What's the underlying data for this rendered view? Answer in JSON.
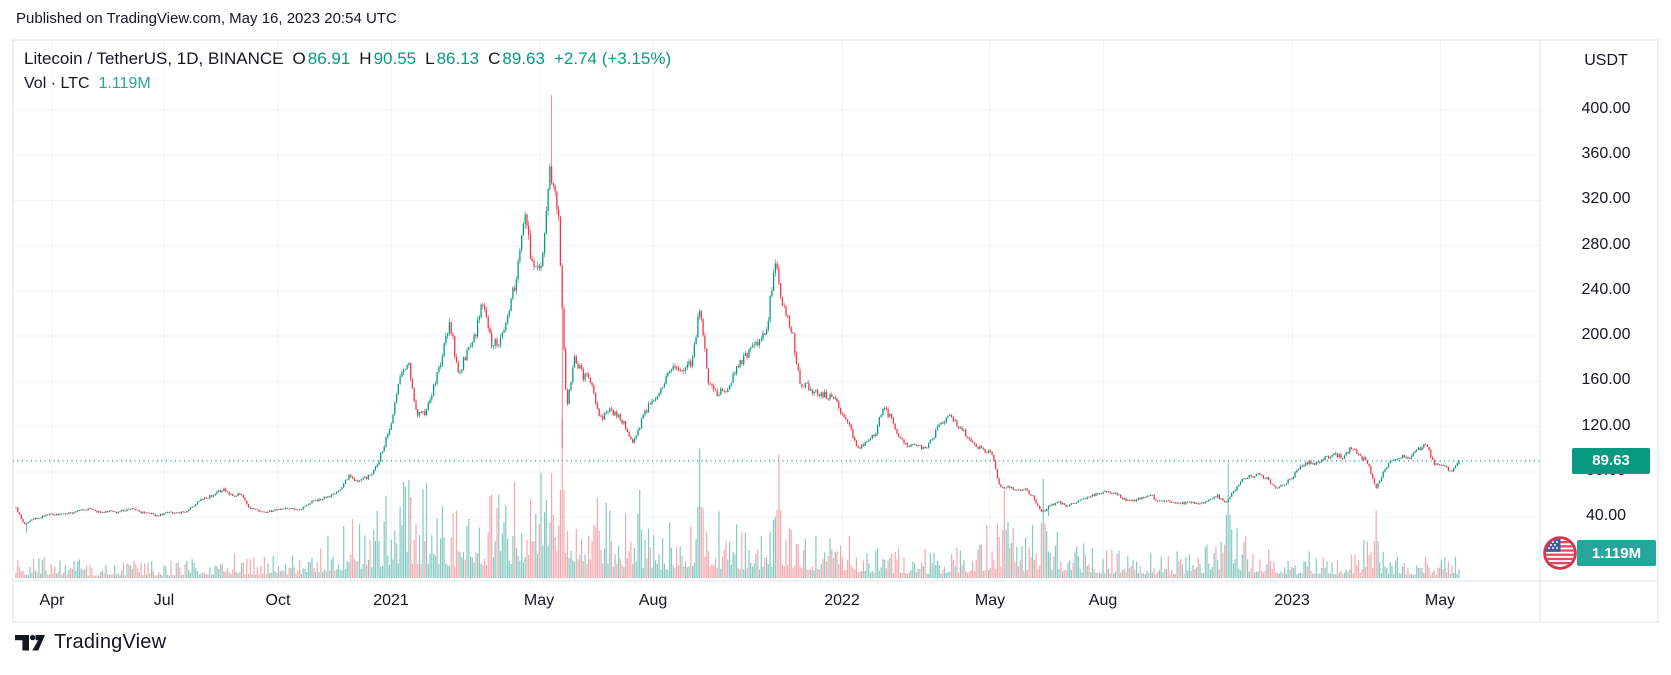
{
  "published": {
    "text": "Published on TradingView.com, May 16, 2023 20:54 UTC"
  },
  "header": {
    "title": "Litecoin / TetherUS, 1D, BINANCE",
    "ohlc": [
      {
        "label": "O",
        "value": "86.91"
      },
      {
        "label": "H",
        "value": "90.55"
      },
      {
        "label": "L",
        "value": "86.13"
      },
      {
        "label": "C",
        "value": "89.63"
      }
    ],
    "change": "+2.74 (+3.15%)",
    "volume": {
      "label": "Vol · LTC",
      "value": "1.119M"
    }
  },
  "price_scale": {
    "currency_label": "USDT",
    "last_price_label": "89.63",
    "volume_label": "1.119M",
    "ticks": [
      {
        "label": "400.00",
        "value": 400
      },
      {
        "label": "360.00",
        "value": 360
      },
      {
        "label": "320.00",
        "value": 320
      },
      {
        "label": "280.00",
        "value": 280
      },
      {
        "label": "240.00",
        "value": 240
      },
      {
        "label": "200.00",
        "value": 200
      },
      {
        "label": "160.00",
        "value": 160
      },
      {
        "label": "120.00",
        "value": 120
      },
      {
        "label": "80.00",
        "value": 80
      },
      {
        "label": "40.00",
        "value": 40
      }
    ]
  },
  "time_scale": {
    "ticks": [
      {
        "label": "Apr",
        "date": "2020-04-01"
      },
      {
        "label": "Jul",
        "date": "2020-07-01"
      },
      {
        "label": "Oct",
        "date": "2020-10-01"
      },
      {
        "label": "2021",
        "date": "2021-01-01"
      },
      {
        "label": "May",
        "date": "2021-05-01"
      },
      {
        "label": "Aug",
        "date": "2021-08-01"
      },
      {
        "label": "2022",
        "date": "2022-01-01"
      },
      {
        "label": "May",
        "date": "2022-05-01"
      },
      {
        "label": "Aug",
        "date": "2022-08-01"
      },
      {
        "label": "2023",
        "date": "2023-01-01"
      },
      {
        "label": "May",
        "date": "2023-05-01"
      }
    ]
  },
  "footer": {
    "brand": "TradingView"
  },
  "colors": {
    "up": "#089981",
    "down": "#f23645",
    "volume_up": "#85c9c1",
    "volume_down": "#f5a8ae",
    "volume_badge": "#26a69a",
    "volume_value": "#26a69a",
    "accent_value": "#089981",
    "grid": "#f0f3fa",
    "border": "#e0e3eb",
    "text": "#131722"
  },
  "chart_data": {
    "type": "candlestick+volume",
    "symbol": "LTCUSDT",
    "exchange": "BINANCE",
    "interval": "1D",
    "title": "Litecoin / TetherUS, 1D, BINANCE",
    "start_date": "2020-03-03",
    "end_date": "2023-05-16",
    "y_axis_currency": "USDT",
    "y_ticks": [
      40,
      80,
      120,
      160,
      200,
      240,
      280,
      320,
      360,
      400
    ],
    "grid": true,
    "last_price_line": 89.63,
    "ohlc_last": {
      "open": 86.91,
      "high": 90.55,
      "low": 86.13,
      "close": 89.63,
      "change": 2.74,
      "change_pct": 3.15
    },
    "last_volume": "1.119M",
    "ath": {
      "date": "2021-05-10",
      "high": 413
    },
    "weekly_closes": [
      48,
      33,
      38,
      40,
      43,
      42,
      43,
      44,
      46,
      47,
      44,
      45,
      44,
      46,
      47,
      44,
      43,
      41,
      44,
      43,
      44,
      48,
      55,
      57,
      62,
      64,
      58,
      61,
      48,
      46,
      44,
      46,
      47,
      48,
      46,
      52,
      55,
      57,
      60,
      65,
      78,
      70,
      75,
      82,
      100,
      124,
      160,
      178,
      130,
      132,
      152,
      178,
      215,
      165,
      185,
      200,
      230,
      192,
      197,
      220,
      253,
      310,
      255,
      265,
      350,
      310,
      135,
      180,
      165,
      160,
      125,
      135,
      130,
      122,
      105,
      125,
      140,
      145,
      165,
      175,
      165,
      178,
      225,
      158,
      150,
      152,
      165,
      178,
      188,
      195,
      205,
      268,
      225,
      205,
      160,
      155,
      150,
      148,
      146,
      132,
      118,
      101,
      108,
      112,
      140,
      125,
      108,
      103,
      105,
      100,
      112,
      124,
      131,
      120,
      112,
      104,
      99,
      96,
      65,
      67,
      63,
      65,
      57,
      44,
      50,
      53,
      50,
      52,
      56,
      59,
      61,
      62,
      60,
      55,
      54,
      57,
      60,
      53,
      54,
      53,
      52,
      53,
      52,
      55,
      59,
      52,
      63,
      73,
      76,
      77,
      74,
      66,
      68,
      75,
      84,
      88,
      87,
      92,
      97,
      92,
      100,
      95,
      88,
      66,
      80,
      91,
      94,
      92,
      99,
      105,
      88,
      87,
      80,
      89.63
    ],
    "forced_points": [
      {
        "f": 0.0077,
        "low": 26
      },
      {
        "f": 0.3713,
        "high": 413
      },
      {
        "f": 0.379,
        "low": 101
      },
      {
        "f": 0.716,
        "low": 41
      }
    ],
    "volume_envelope": [
      {
        "f": 0.0,
        "v": 0.1
      },
      {
        "f": 0.05,
        "v": 0.07
      },
      {
        "f": 0.1,
        "v": 0.07
      },
      {
        "f": 0.15,
        "v": 0.1
      },
      {
        "f": 0.19,
        "v": 0.09
      },
      {
        "f": 0.21,
        "v": 0.16
      },
      {
        "f": 0.245,
        "v": 0.28
      },
      {
        "f": 0.27,
        "v": 0.42
      },
      {
        "f": 0.29,
        "v": 0.38
      },
      {
        "f": 0.31,
        "v": 0.3
      },
      {
        "f": 0.34,
        "v": 0.38
      },
      {
        "f": 0.37,
        "v": 0.55
      },
      {
        "f": 0.385,
        "v": 0.48
      },
      {
        "f": 0.4,
        "v": 0.35
      },
      {
        "f": 0.43,
        "v": 0.3
      },
      {
        "f": 0.45,
        "v": 0.22
      },
      {
        "f": 0.474,
        "v": 0.35
      },
      {
        "f": 0.49,
        "v": 0.25
      },
      {
        "f": 0.51,
        "v": 0.22
      },
      {
        "f": 0.529,
        "v": 0.3
      },
      {
        "f": 0.55,
        "v": 0.22
      },
      {
        "f": 0.572,
        "v": 0.18
      },
      {
        "f": 0.6,
        "v": 0.14
      },
      {
        "f": 0.63,
        "v": 0.12
      },
      {
        "f": 0.66,
        "v": 0.14
      },
      {
        "f": 0.684,
        "v": 0.28
      },
      {
        "f": 0.7,
        "v": 0.2
      },
      {
        "f": 0.712,
        "v": 0.26
      },
      {
        "f": 0.73,
        "v": 0.16
      },
      {
        "f": 0.76,
        "v": 0.12
      },
      {
        "f": 0.79,
        "v": 0.1
      },
      {
        "f": 0.82,
        "v": 0.12
      },
      {
        "f": 0.839,
        "v": 0.28
      },
      {
        "f": 0.86,
        "v": 0.14
      },
      {
        "f": 0.88,
        "v": 0.1
      },
      {
        "f": 0.9,
        "v": 0.12
      },
      {
        "f": 0.92,
        "v": 0.1
      },
      {
        "f": 0.936,
        "v": 0.16
      },
      {
        "f": 0.96,
        "v": 0.1
      },
      {
        "f": 0.98,
        "v": 0.09
      },
      {
        "f": 1.0,
        "v": 0.1
      }
    ],
    "volume_spikes": [
      {
        "f": 0.25,
        "v": 0.42
      },
      {
        "f": 0.269,
        "v": 0.6
      },
      {
        "f": 0.295,
        "v": 0.45
      },
      {
        "f": 0.379,
        "v": 1.0
      },
      {
        "f": 0.432,
        "v": 0.55
      },
      {
        "f": 0.474,
        "v": 0.81
      },
      {
        "f": 0.529,
        "v": 0.77
      },
      {
        "f": 0.685,
        "v": 0.55
      },
      {
        "f": 0.712,
        "v": 0.62
      },
      {
        "f": 0.84,
        "v": 0.72
      },
      {
        "f": 0.943,
        "v": 0.42
      }
    ]
  }
}
